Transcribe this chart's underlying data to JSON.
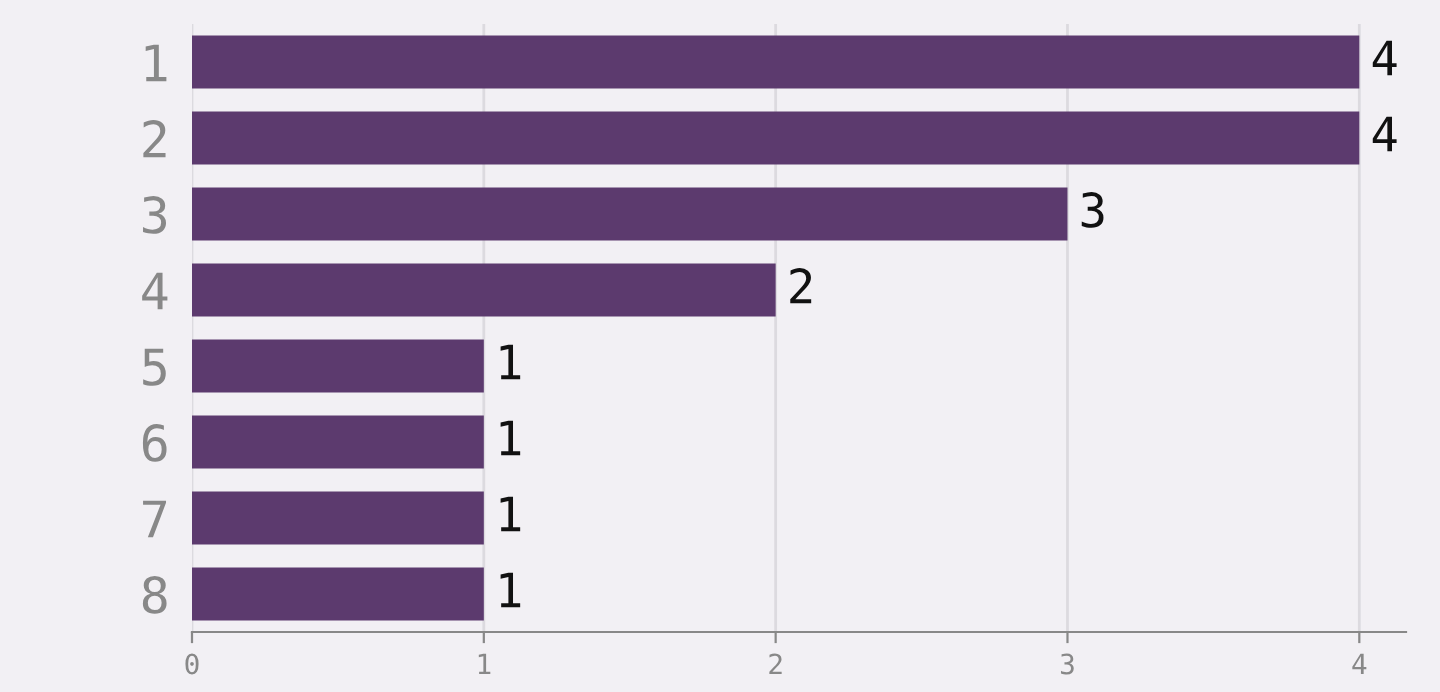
{
  "chart_data": {
    "type": "bar",
    "orientation": "horizontal",
    "categories": [
      "1",
      "2",
      "3",
      "4",
      "5",
      "6",
      "7",
      "8"
    ],
    "values": [
      4,
      4,
      3,
      2,
      1,
      1,
      1,
      1
    ],
    "color": "#5c3a6e",
    "xlim": [
      0,
      4.16
    ],
    "xticks": [
      0,
      1,
      2,
      3,
      4
    ],
    "grid": "x",
    "data_labels": true
  }
}
